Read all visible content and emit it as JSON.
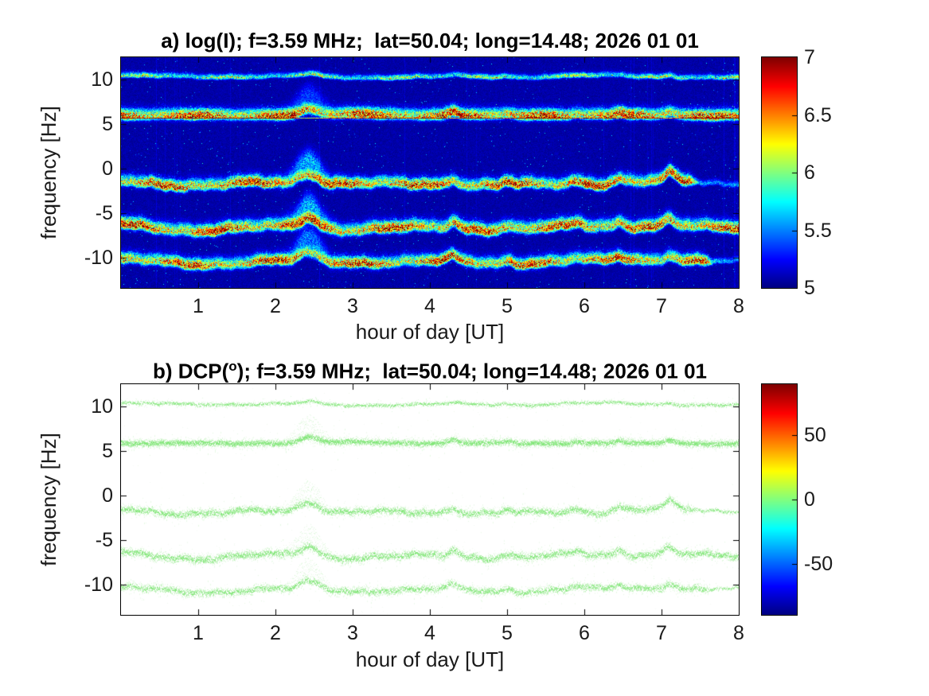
{
  "measurement": {
    "f_mhz": 3.59,
    "lat": 50.04,
    "long": 14.48,
    "date": "2026 01 01"
  },
  "colors": {
    "colormap": "jet",
    "panel_a_background": "#0a0aa0",
    "band_hot": "#c00000",
    "panel_b_dots": "#7ce572",
    "tick_label": "#1a1a1a",
    "title": "#000000"
  },
  "chart_data": [
    {
      "type": "heatmap",
      "panel": "a",
      "title": "a) log(I); f=3.59 MHz;  lat=50.04; long=14.48; 2026 01 01",
      "xlabel": "hour of day [UT]",
      "ylabel": "frequency [Hz]",
      "xlim": [
        0,
        8
      ],
      "ylim": [
        -13.3,
        12.5
      ],
      "x_ticks": [
        1,
        2,
        3,
        4,
        5,
        6,
        7,
        8
      ],
      "x_tick_labels": [
        "1",
        "2",
        "3",
        "4",
        "5",
        "6",
        "7",
        "8"
      ],
      "y_ticks": [
        10,
        5,
        0,
        -5,
        -10
      ],
      "y_tick_labels": [
        "10",
        "5",
        "0",
        "-5",
        "-10"
      ],
      "grid": false,
      "colormap": "jet",
      "colorbar": {
        "min": 5,
        "max": 7,
        "ticks": [
          7,
          6.5,
          6,
          5.5,
          5
        ],
        "tick_labels": [
          "7",
          "6.5",
          "6",
          "5.5",
          "5"
        ]
      },
      "background_value": 5,
      "bands": [
        {
          "name": "weak trace near +10 Hz",
          "centers_by_hour": [
            10.4,
            10.3,
            10.35,
            10.2,
            10.3,
            10.25,
            10.4,
            10.3,
            10.2
          ],
          "width_hz": 0.14,
          "peak_value": 6.15,
          "wander_hz": 0.14,
          "event_response": 0.25
        },
        {
          "name": "strong band near +6 Hz with constant carrier line",
          "centers_by_hour": [
            5.95,
            5.9,
            5.95,
            6.05,
            5.95,
            5.9,
            5.95,
            5.9,
            5.9
          ],
          "width_hz": 0.3,
          "peak_value": 6.95,
          "wander_hz": 0.09,
          "event_response": 0.5,
          "carrier_line_hz": 5.75
        },
        {
          "name": "strong band near -2 Hz",
          "centers_by_hour": [
            -1.35,
            -2.1,
            -1.55,
            -1.85,
            -1.8,
            -2.0,
            -1.75,
            -1.5,
            -1.7
          ],
          "width_hz": 0.3,
          "peak_value": 6.95,
          "wander_hz": 0.32,
          "event_response": 1.0,
          "fade_after_ut": 7.35
        },
        {
          "name": "strong band near -7 Hz",
          "centers_by_hour": [
            -6.45,
            -7.0,
            -6.6,
            -6.9,
            -6.7,
            -6.9,
            -6.6,
            -6.5,
            -6.8
          ],
          "width_hz": 0.32,
          "peak_value": 6.95,
          "wander_hz": 0.28,
          "event_response": 1.0
        },
        {
          "name": "strong band near -10.5 Hz",
          "centers_by_hour": [
            -10.3,
            -10.8,
            -10.45,
            -10.6,
            -10.5,
            -10.7,
            -10.45,
            -10.3,
            -10.5
          ],
          "width_hz": 0.3,
          "peak_value": 6.9,
          "wander_hz": 0.26,
          "event_response": 0.8,
          "fade_after_ut": 7.55
        }
      ],
      "event": {
        "time_ut": 2.43,
        "width_h": 0.16,
        "max_upward_excursion_hz": 2.5
      },
      "minor_disturbances": [
        {
          "time_ut": 4.3,
          "amp_hz": 0.7
        },
        {
          "time_ut": 5.0,
          "amp_hz": 0.4
        },
        {
          "time_ut": 5.9,
          "amp_hz": 0.35
        },
        {
          "time_ut": 6.45,
          "amp_hz": 0.5
        },
        {
          "time_ut": 7.1,
          "amp_hz": 0.8
        }
      ]
    },
    {
      "type": "scatter",
      "panel": "b",
      "title": "b) DCP(o); f=3.59 MHz;  lat=50.04; long=14.48; 2026 01 01",
      "title_parts": {
        "pre": "b) DCP(",
        "sup": "o",
        "post": "); f=3.59 MHz;  lat=50.04; long=14.48; 2026 01 01"
      },
      "xlabel": "hour of day [UT]",
      "ylabel": "frequency [Hz]",
      "xlim": [
        0,
        8
      ],
      "ylim": [
        -13.3,
        12.5
      ],
      "x_ticks": [
        1,
        2,
        3,
        4,
        5,
        6,
        7,
        8
      ],
      "x_tick_labels": [
        "1",
        "2",
        "3",
        "4",
        "5",
        "6",
        "7",
        "8"
      ],
      "y_ticks": [
        10,
        5,
        0,
        -5,
        -10
      ],
      "y_tick_labels": [
        "10",
        "5",
        "0",
        "-5",
        "-10"
      ],
      "grid": false,
      "colormap": "jet",
      "colorbar": {
        "min": -90,
        "max": 90,
        "ticks": [
          50,
          0,
          -50
        ],
        "tick_labels": [
          "50",
          "0",
          "-50"
        ]
      },
      "dot_value_deg": 15,
      "dot_color": "#7ce572",
      "band_centers": "same traces as panel a bands",
      "scatter_spread_hz": [
        0.25,
        0.42,
        0.48,
        0.52,
        0.48
      ],
      "scatter_density": [
        3,
        9,
        7,
        7,
        6
      ]
    }
  ]
}
